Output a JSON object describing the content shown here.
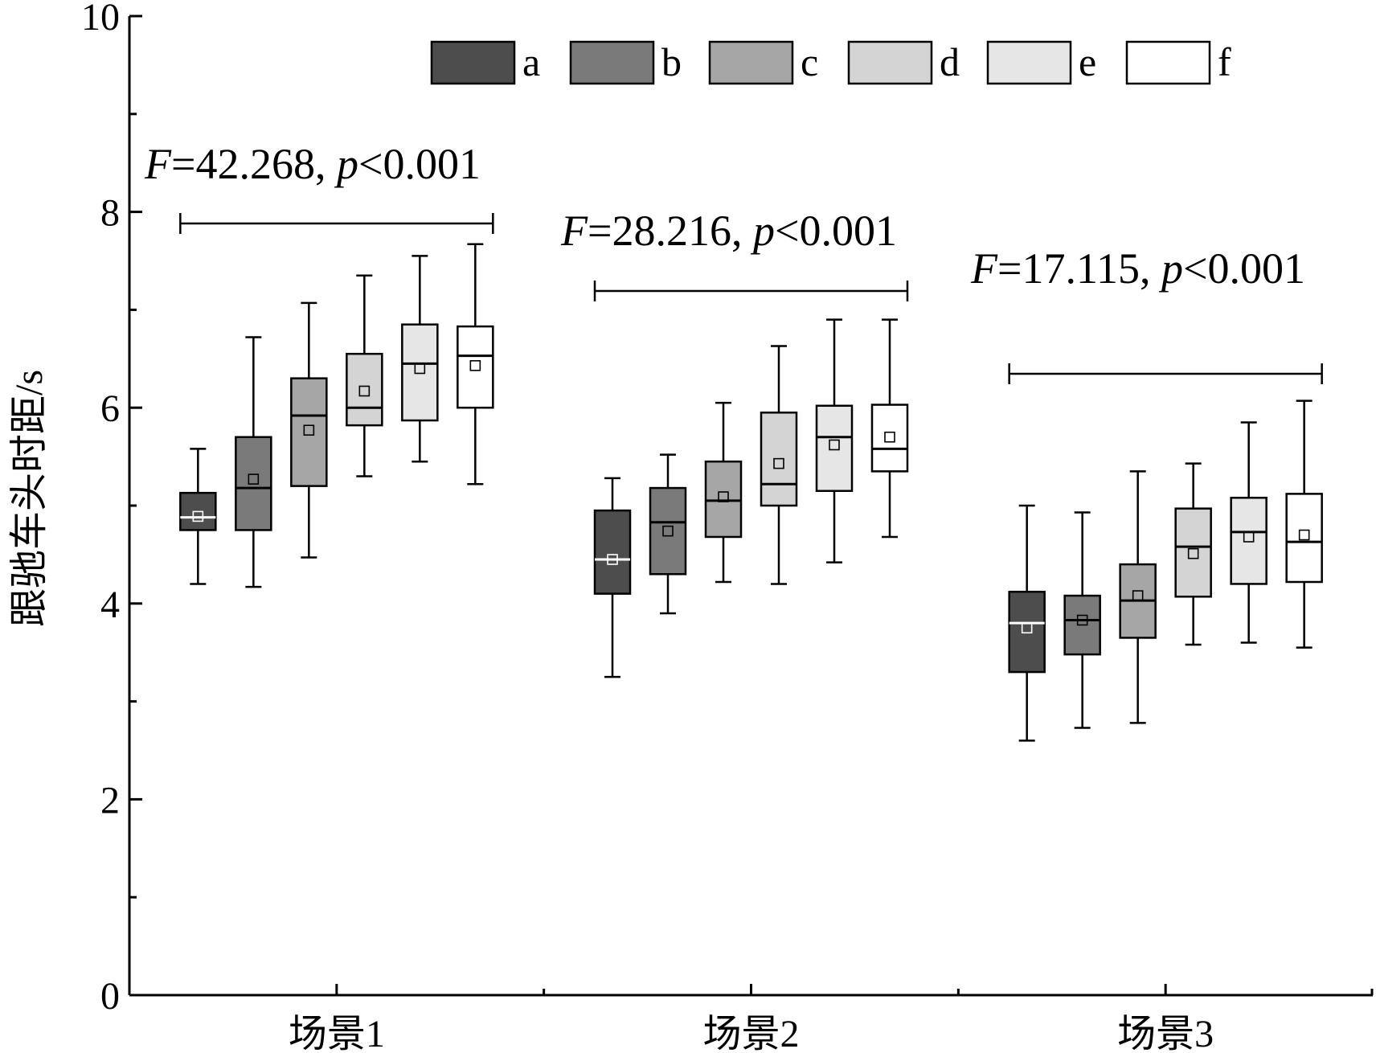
{
  "chart_data": {
    "type": "box",
    "ylabel": "跟驰车头时距/s",
    "ylim": [
      0,
      10
    ],
    "yticks": [
      "0",
      "2",
      "4",
      "6",
      "8",
      "10"
    ],
    "categories": [
      "场景1",
      "场景2",
      "场景3"
    ],
    "legend": {
      "placement": "top",
      "entries": [
        {
          "label": "a",
          "color": "#4d4d4d"
        },
        {
          "label": "b",
          "color": "#7a7a7a"
        },
        {
          "label": "c",
          "color": "#a6a6a6"
        },
        {
          "label": "d",
          "color": "#d4d4d4"
        },
        {
          "label": "e",
          "color": "#e6e6e6"
        },
        {
          "label": "f",
          "color": "#ffffff"
        }
      ]
    },
    "annotations": [
      {
        "category": "场景1",
        "F": "42.268",
        "p": "0.001"
      },
      {
        "category": "场景2",
        "F": "28.216",
        "p": "0.001"
      },
      {
        "category": "场景3",
        "F": "17.115",
        "p": "0.001"
      }
    ],
    "groups": [
      {
        "category": "场景1",
        "boxes": [
          {
            "series": "a",
            "min": 4.2,
            "q1": 4.75,
            "median": 4.88,
            "q3": 5.13,
            "max": 5.58,
            "mean": 4.89
          },
          {
            "series": "b",
            "min": 4.17,
            "q1": 4.75,
            "median": 5.18,
            "q3": 5.7,
            "max": 6.72,
            "mean": 5.27
          },
          {
            "series": "c",
            "min": 4.47,
            "q1": 5.2,
            "median": 5.92,
            "q3": 6.3,
            "max": 7.07,
            "mean": 5.77
          },
          {
            "series": "d",
            "min": 5.3,
            "q1": 5.82,
            "median": 6.0,
            "q3": 6.55,
            "max": 7.35,
            "mean": 6.17
          },
          {
            "series": "e",
            "min": 5.45,
            "q1": 5.87,
            "median": 6.45,
            "q3": 6.85,
            "max": 7.55,
            "mean": 6.4
          },
          {
            "series": "f",
            "min": 5.22,
            "q1": 6.0,
            "median": 6.53,
            "q3": 6.83,
            "max": 7.67,
            "mean": 6.43
          }
        ]
      },
      {
        "category": "场景2",
        "boxes": [
          {
            "series": "a",
            "min": 3.25,
            "q1": 4.1,
            "median": 4.45,
            "q3": 4.95,
            "max": 5.28,
            "mean": 4.45
          },
          {
            "series": "b",
            "min": 3.9,
            "q1": 4.3,
            "median": 4.83,
            "q3": 5.18,
            "max": 5.52,
            "mean": 4.74
          },
          {
            "series": "c",
            "min": 4.22,
            "q1": 4.68,
            "median": 5.05,
            "q3": 5.45,
            "max": 6.05,
            "mean": 5.09
          },
          {
            "series": "d",
            "min": 4.2,
            "q1": 5.0,
            "median": 5.22,
            "q3": 5.95,
            "max": 6.63,
            "mean": 5.43
          },
          {
            "series": "e",
            "min": 4.42,
            "q1": 5.15,
            "median": 5.7,
            "q3": 6.02,
            "max": 6.9,
            "mean": 5.62
          },
          {
            "series": "f",
            "min": 4.68,
            "q1": 5.35,
            "median": 5.58,
            "q3": 6.03,
            "max": 6.9,
            "mean": 5.7
          }
        ]
      },
      {
        "category": "场景3",
        "boxes": [
          {
            "series": "a",
            "min": 2.6,
            "q1": 3.3,
            "median": 3.8,
            "q3": 4.12,
            "max": 5.0,
            "mean": 3.75
          },
          {
            "series": "b",
            "min": 2.73,
            "q1": 3.48,
            "median": 3.83,
            "q3": 4.08,
            "max": 4.93,
            "mean": 3.83
          },
          {
            "series": "c",
            "min": 2.78,
            "q1": 3.65,
            "median": 4.03,
            "q3": 4.4,
            "max": 5.35,
            "mean": 4.08
          },
          {
            "series": "d",
            "min": 3.58,
            "q1": 4.07,
            "median": 4.58,
            "q3": 4.97,
            "max": 5.43,
            "mean": 4.51
          },
          {
            "series": "e",
            "min": 3.6,
            "q1": 4.2,
            "median": 4.73,
            "q3": 5.08,
            "max": 5.85,
            "mean": 4.68
          },
          {
            "series": "f",
            "min": 3.55,
            "q1": 4.22,
            "median": 4.63,
            "q3": 5.12,
            "max": 6.07,
            "mean": 4.7
          }
        ]
      }
    ]
  }
}
